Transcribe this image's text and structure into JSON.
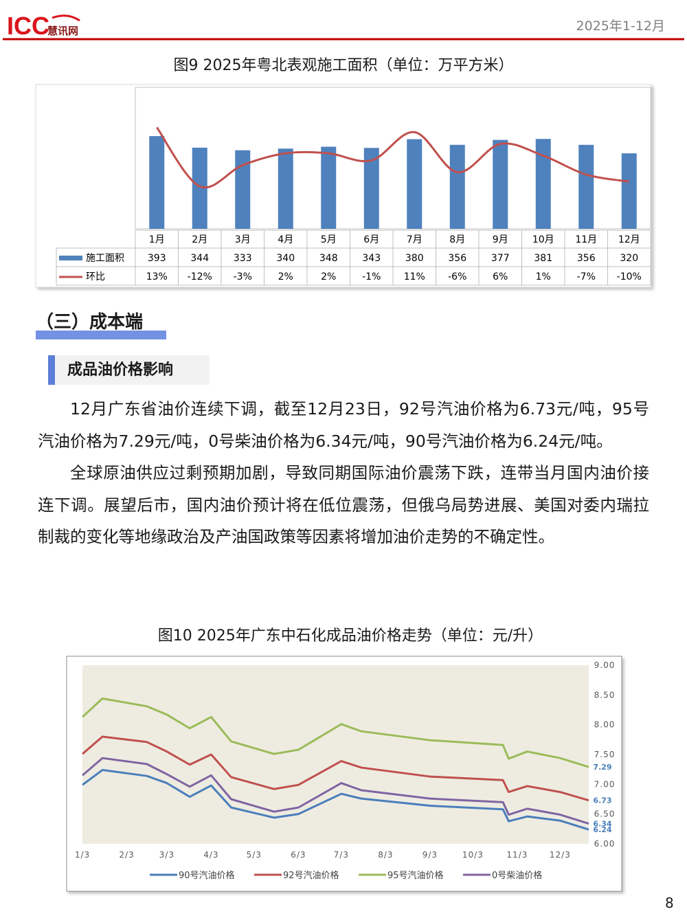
{
  "header": {
    "logo_main": "ICC",
    "logo_sub": "慧讯网",
    "period": "2025年1-12月"
  },
  "chart_data": [
    {
      "type": "combo",
      "title": "图9 2025年粤北表观施工面积（单位：万平方米）",
      "categories": [
        "1月",
        "2月",
        "3月",
        "4月",
        "5月",
        "6月",
        "7月",
        "8月",
        "9月",
        "10月",
        "11月",
        "12月"
      ],
      "series": [
        {
          "name": "施工面积",
          "type": "bar",
          "color": "#4f81bd",
          "values": [
            393,
            344,
            333,
            340,
            348,
            343,
            380,
            356,
            377,
            381,
            356,
            320
          ]
        },
        {
          "name": "环比",
          "type": "line",
          "axis": "y2",
          "color": "#c0504d",
          "values": [
            13,
            -12,
            -3,
            2,
            2,
            -1,
            11,
            -6,
            6,
            1,
            -7,
            -10
          ],
          "value_labels": [
            "13%",
            "-12%",
            "-3%",
            "2%",
            "2%",
            "-1%",
            "11%",
            "-6%",
            "6%",
            "1%",
            "-7%",
            "-10%"
          ]
        }
      ],
      "ylim": [
        0,
        600
      ],
      "y2lim": [
        -30,
        30
      ]
    },
    {
      "type": "line",
      "title": "图10 2025年广东中石化成品油价格走势（单位：元/升）",
      "x": [
        "1/3",
        "1/17",
        "2/17",
        "3/3",
        "3/19",
        "4/3",
        "4/17",
        "5/17",
        "6/3",
        "7/3",
        "7/17",
        "9/3",
        "10/24",
        "10/28",
        "11/10",
        "12/3",
        "12/23"
      ],
      "xlim": [
        "1/3",
        "12/23"
      ],
      "xticks": [
        "1/3",
        "2/3",
        "3/3",
        "4/3",
        "5/3",
        "6/3",
        "7/3",
        "8/3",
        "9/3",
        "10/3",
        "11/3",
        "12/3"
      ],
      "ylim": [
        6,
        9
      ],
      "yticks": [
        {
          "value": 6,
          "label": "6.00"
        },
        {
          "value": 6.5,
          "label": "6.50"
        },
        {
          "value": 7,
          "label": "7.00"
        },
        {
          "value": 7.5,
          "label": "7.50"
        },
        {
          "value": 8,
          "label": "8.00"
        },
        {
          "value": 8.5,
          "label": "8.50"
        },
        {
          "value": 9,
          "label": "9.00"
        }
      ],
      "yaxis_side": "right",
      "end_labels": true,
      "end_label_color": "#4a7ebb",
      "legend": "bottom",
      "background": "#eeece1",
      "series": [
        {
          "name": "90号汽油价格",
          "color": "#4a7ebb",
          "values": [
            6.99,
            7.24,
            7.14,
            7.02,
            6.79,
            6.98,
            6.61,
            6.44,
            6.5,
            6.84,
            6.76,
            6.64,
            6.58,
            6.38,
            6.46,
            6.39,
            6.24
          ]
        },
        {
          "name": "92号汽油价格",
          "color": "#c0504d",
          "values": [
            7.51,
            7.8,
            7.71,
            7.55,
            7.33,
            7.5,
            7.12,
            6.92,
            6.99,
            7.39,
            7.28,
            7.13,
            7.07,
            6.87,
            6.97,
            6.87,
            6.73
          ]
        },
        {
          "name": "95号汽油价格",
          "color": "#9bbb59",
          "values": [
            8.13,
            8.44,
            8.31,
            8.17,
            7.94,
            8.13,
            7.72,
            7.51,
            7.58,
            8.01,
            7.89,
            7.74,
            7.66,
            7.43,
            7.55,
            7.44,
            7.29
          ]
        },
        {
          "name": "0号柴油价格",
          "color": "#8064a2",
          "values": [
            7.15,
            7.44,
            7.34,
            7.17,
            6.96,
            7.15,
            6.75,
            6.54,
            6.61,
            7.02,
            6.9,
            6.76,
            6.7,
            6.49,
            6.59,
            6.49,
            6.34
          ]
        }
      ]
    }
  ],
  "section": {
    "title": "（三）成本端",
    "subtitle": "成品油价格影响",
    "paragraphs": [
      "12月广东省油价连续下调，截至12月23日，92号汽油价格为6.73元/吨，95号汽油价格为7.29元/吨，0号柴油价格为6.34元/吨，90号汽油价格为6.24元/吨。",
      "全球原油供应过剩预期加剧，导致同期国际油价震荡下跌，连带当月国内油价接连下调。展望后市，国内油价预计将在低位震荡，但俄乌局势进展、美国对委内瑞拉制裁的变化等地缘政治及产油国政策等因素将增加油价走势的不确定性。"
    ]
  },
  "page_number": 8
}
